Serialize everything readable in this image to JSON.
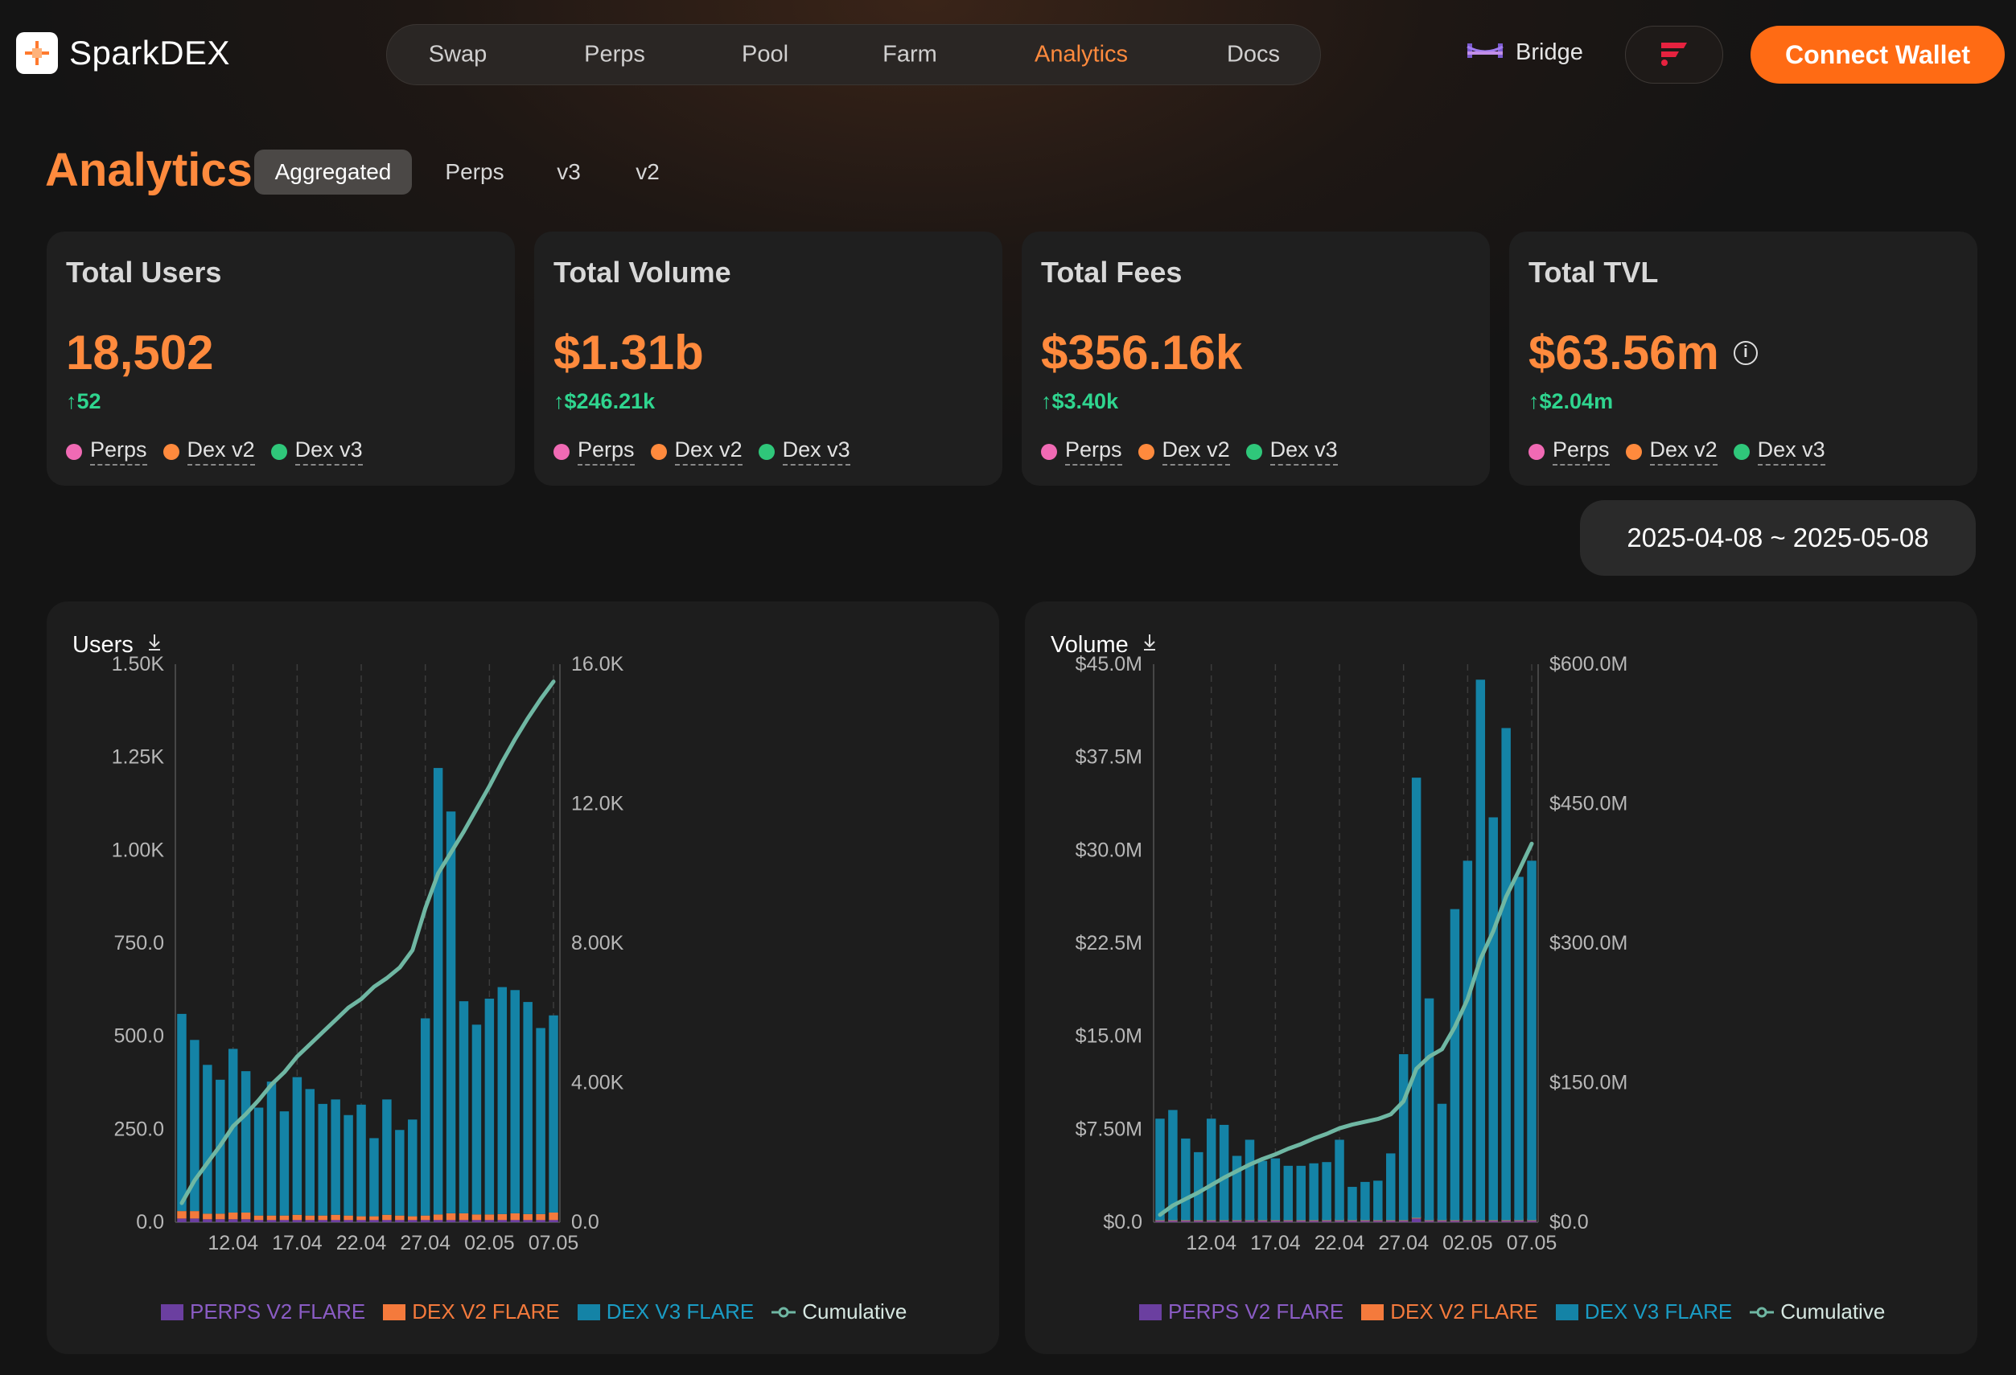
{
  "header": {
    "logo_text": "SparkDEX",
    "nav": [
      {
        "label": "Swap"
      },
      {
        "label": "Perps"
      },
      {
        "label": "Pool"
      },
      {
        "label": "Farm"
      },
      {
        "label": "Analytics"
      },
      {
        "label": "Docs"
      }
    ],
    "active_nav": "Analytics",
    "bridge_label": "Bridge",
    "connect_label": "Connect Wallet"
  },
  "page": {
    "title": "Analytics",
    "tabs": [
      {
        "label": "Aggregated"
      },
      {
        "label": "Perps"
      },
      {
        "label": "v3"
      },
      {
        "label": "v2"
      }
    ],
    "active_tab": "Aggregated"
  },
  "cards": [
    {
      "title": "Total Users",
      "value": "18,502",
      "delta": "52",
      "legend": [
        "Perps",
        "Dex v2",
        "Dex v3"
      ]
    },
    {
      "title": "Total Volume",
      "value": "$1.31b",
      "delta": "$246.21k",
      "legend": [
        "Perps",
        "Dex v2",
        "Dex v3"
      ]
    },
    {
      "title": "Total Fees",
      "value": "$356.16k",
      "delta": "$3.40k",
      "legend": [
        "Perps",
        "Dex v2",
        "Dex v3"
      ]
    },
    {
      "title": "Total TVL",
      "value": "$63.56m",
      "delta": "$2.04m",
      "legend": [
        "Perps",
        "Dex v2",
        "Dex v3"
      ]
    }
  ],
  "date_range": "2025-04-08 ~ 2025-05-08",
  "colors": {
    "accent": "#ff8a3d",
    "positive": "#2fd58f",
    "perps": "#f06ab4",
    "dex_v2": "#ff8a3d",
    "dex_v3": "#2fc77a",
    "bar_perps": "#6b3fa0",
    "bar_v2": "#f47a3c",
    "bar_v3": "#1483a6",
    "cumulative": "#6fb7a3"
  },
  "chart_data": [
    {
      "type": "bar",
      "title": "Users",
      "x_ticks": [
        "12.04",
        "17.04",
        "22.04",
        "27.04",
        "02.05",
        "07.05"
      ],
      "y_left_ticks": [
        "0.0",
        "250.0",
        "500.0",
        "750.0",
        "1.00K",
        "1.25K",
        "1.50K"
      ],
      "y_right_ticks": [
        "0.0",
        "4.00K",
        "8.00K",
        "12.0K",
        "16.0K"
      ],
      "ylim_left": [
        0,
        1500
      ],
      "ylim_right": [
        0,
        16000
      ],
      "categories": [
        "08.04",
        "09.04",
        "10.04",
        "11.04",
        "12.04",
        "13.04",
        "14.04",
        "15.04",
        "16.04",
        "17.04",
        "18.04",
        "19.04",
        "20.04",
        "21.04",
        "22.04",
        "23.04",
        "24.04",
        "25.04",
        "26.04",
        "27.04",
        "28.04",
        "29.04",
        "30.04",
        "01.05",
        "02.05",
        "03.05",
        "04.05",
        "05.05",
        "06.05",
        "07.05"
      ],
      "series": [
        {
          "name": "PERPS V2 FLARE",
          "values": [
            10,
            10,
            8,
            8,
            8,
            8,
            6,
            6,
            6,
            6,
            6,
            6,
            6,
            6,
            6,
            6,
            6,
            6,
            6,
            6,
            6,
            6,
            6,
            6,
            6,
            6,
            6,
            6,
            6,
            6
          ]
        },
        {
          "name": "DEX V2 FLARE",
          "values": [
            20,
            20,
            15,
            15,
            18,
            18,
            12,
            12,
            12,
            14,
            12,
            12,
            14,
            12,
            10,
            10,
            14,
            12,
            10,
            12,
            15,
            18,
            18,
            15,
            15,
            16,
            18,
            16,
            16,
            20
          ]
        },
        {
          "name": "DEX V3 FLARE",
          "values": [
            530,
            460,
            400,
            360,
            440,
            380,
            290,
            360,
            280,
            370,
            340,
            300,
            310,
            270,
            300,
            210,
            310,
            230,
            260,
            530,
            1200,
            1080,
            570,
            510,
            580,
            610,
            600,
            570,
            500,
            530
          ]
        },
        {
          "name": "Cumulative",
          "axis": "right",
          "values": [
            550,
            1200,
            1700,
            2200,
            2750,
            3100,
            3500,
            3950,
            4300,
            4750,
            5100,
            5450,
            5800,
            6150,
            6400,
            6750,
            7000,
            7300,
            7800,
            9000,
            10000,
            10600,
            11200,
            11850,
            12500,
            13200,
            13850,
            14450,
            15000,
            15500
          ]
        }
      ]
    },
    {
      "type": "bar",
      "title": "Volume",
      "x_ticks": [
        "12.04",
        "17.04",
        "22.04",
        "27.04",
        "02.05",
        "07.05"
      ],
      "y_left_ticks": [
        "$0.0",
        "$7.50M",
        "$15.0M",
        "$22.5M",
        "$30.0M",
        "$37.5M",
        "$45.0M"
      ],
      "y_right_ticks": [
        "$0.0",
        "$150.0M",
        "$300.0M",
        "$450.0M",
        "$600.0M"
      ],
      "ylim_left": [
        0,
        45000000
      ],
      "ylim_right": [
        0,
        600000000
      ],
      "categories": [
        "08.04",
        "09.04",
        "10.04",
        "11.04",
        "12.04",
        "13.04",
        "14.04",
        "15.04",
        "16.04",
        "17.04",
        "18.04",
        "19.04",
        "20.04",
        "21.04",
        "22.04",
        "23.04",
        "24.04",
        "25.04",
        "26.04",
        "27.04",
        "28.04",
        "29.04",
        "30.04",
        "01.05",
        "02.05",
        "03.05",
        "04.05",
        "05.05",
        "06.05",
        "07.05"
      ],
      "series": [
        {
          "name": "PERPS V2 FLARE",
          "values": [
            100000,
            100000,
            100000,
            100000,
            100000,
            100000,
            100000,
            100000,
            100000,
            100000,
            100000,
            100000,
            100000,
            100000,
            100000,
            100000,
            100000,
            100000,
            100000,
            100000,
            300000,
            100000,
            100000,
            100000,
            100000,
            100000,
            100000,
            100000,
            100000,
            100000
          ]
        },
        {
          "name": "DEX V2 FLARE",
          "values": [
            50000,
            50000,
            50000,
            50000,
            50000,
            50000,
            50000,
            50000,
            50000,
            50000,
            50000,
            50000,
            50000,
            50000,
            50000,
            50000,
            50000,
            50000,
            50000,
            50000,
            50000,
            50000,
            50000,
            50000,
            50000,
            50000,
            50000,
            50000,
            50000,
            50000
          ]
        },
        {
          "name": "DEX V3 FLARE",
          "values": [
            8200000,
            8900000,
            6600000,
            5500000,
            8200000,
            7700000,
            5200000,
            6500000,
            4800000,
            5000000,
            4400000,
            4400000,
            4600000,
            4700000,
            6500000,
            2700000,
            3100000,
            3200000,
            5400000,
            13400000,
            35500000,
            17900000,
            9400000,
            25100000,
            29000000,
            43600000,
            32500000,
            39700000,
            27700000,
            29000000
          ]
        },
        {
          "name": "Cumulative",
          "axis": "right",
          "values": [
            8000000,
            18000000,
            25000000,
            32000000,
            40000000,
            48000000,
            55000000,
            62000000,
            68000000,
            73000000,
            79000000,
            84000000,
            90000000,
            95000000,
            101000000,
            105000000,
            108000000,
            111000000,
            116000000,
            130000000,
            165000000,
            178000000,
            186000000,
            210000000,
            240000000,
            283000000,
            313000000,
            350000000,
            378000000,
            407000000
          ]
        }
      ],
      "legend": [
        "PERPS V2 FLARE",
        "DEX V2 FLARE",
        "DEX V3 FLARE",
        "Cumulative"
      ]
    }
  ],
  "chart_legend": [
    "PERPS V2 FLARE",
    "DEX V2 FLARE",
    "DEX V3 FLARE",
    "Cumulative"
  ]
}
